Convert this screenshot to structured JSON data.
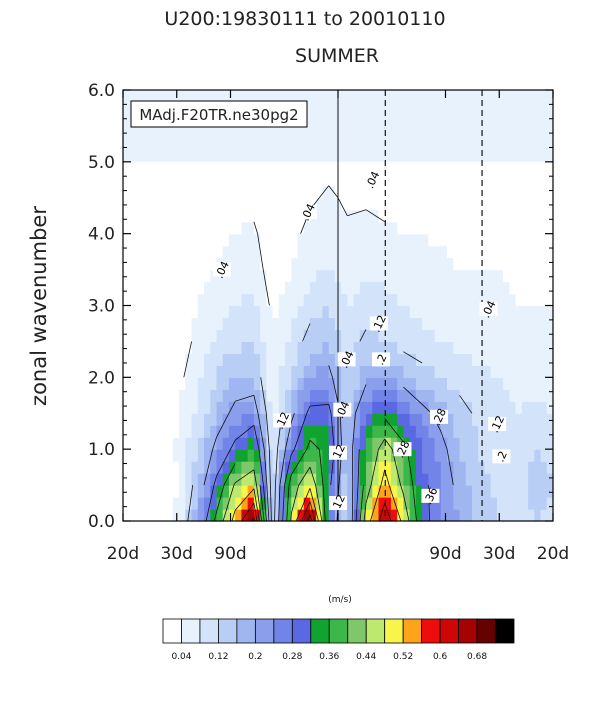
{
  "chart_data": {
    "type": "heatmap",
    "title": "U200:19830111 to 20010110",
    "subtitle": "SUMMER",
    "legend_box": "MAdj.F20TR.ne30pg2",
    "ylabel": "zonal wavenumber",
    "ylim": [
      0,
      6
    ],
    "y_ticks": [
      "0.0",
      "1.0",
      "2.0",
      "3.0",
      "4.0",
      "5.0",
      "6.0"
    ],
    "x_ticks": [
      "20d",
      "30d",
      "90d",
      "",
      "90d",
      "30d",
      "20d"
    ],
    "colorbar_title": "(m/s)",
    "colorbar_labels": [
      "0.04",
      "0.12",
      "0.2",
      "0.28",
      "0.36",
      "0.44",
      "0.52",
      "0.6",
      "0.68"
    ],
    "colorbar_colors": [
      "#ffffff",
      "#e8f2fd",
      "#d3e4fa",
      "#b9cef5",
      "#a0b6f0",
      "#8a9eec",
      "#7284e8",
      "#5a69e2",
      "#10a330",
      "#3cb84a",
      "#7ec86a",
      "#bdea6e",
      "#f8f54a",
      "#ffa21c",
      "#ee0d0d",
      "#cf0606",
      "#a50303",
      "#660101",
      "#000000"
    ],
    "x_norm": [
      0,
      0.125,
      0.25,
      0.5,
      0.75,
      0.875,
      1
    ],
    "y": [
      0,
      0.5,
      1.0,
      1.5,
      2.0,
      2.5,
      3.0,
      3.5,
      4.0,
      4.5,
      5.0
    ],
    "values": [
      [
        0.0,
        0.0,
        0.02,
        0.05,
        0.2,
        0.38,
        0.55,
        0.7,
        0.08,
        0.45,
        0.72,
        0.28,
        0.1,
        0.48,
        0.65,
        0.5,
        0.3,
        0.25,
        0.2,
        0.15,
        0.12,
        0.1,
        0.12,
        0.11
      ],
      [
        0.0,
        0.0,
        0.01,
        0.04,
        0.15,
        0.3,
        0.45,
        0.5,
        0.07,
        0.4,
        0.5,
        0.3,
        0.12,
        0.4,
        0.55,
        0.42,
        0.3,
        0.24,
        0.18,
        0.14,
        0.11,
        0.1,
        0.13,
        0.12
      ],
      [
        0.0,
        0.0,
        0.01,
        0.05,
        0.12,
        0.22,
        0.3,
        0.36,
        0.07,
        0.26,
        0.38,
        0.34,
        0.14,
        0.36,
        0.48,
        0.38,
        0.28,
        0.22,
        0.16,
        0.12,
        0.1,
        0.09,
        0.12,
        0.11
      ],
      [
        0.0,
        0.0,
        0.01,
        0.04,
        0.09,
        0.16,
        0.22,
        0.24,
        0.06,
        0.18,
        0.3,
        0.3,
        0.14,
        0.28,
        0.34,
        0.28,
        0.22,
        0.18,
        0.14,
        0.11,
        0.09,
        0.08,
        0.09,
        0.08
      ],
      [
        0.0,
        0.0,
        0.01,
        0.03,
        0.07,
        0.12,
        0.16,
        0.16,
        0.05,
        0.12,
        0.2,
        0.22,
        0.12,
        0.18,
        0.2,
        0.17,
        0.14,
        0.12,
        0.1,
        0.09,
        0.08,
        0.07,
        0.06,
        0.06
      ],
      [
        0.0,
        0.0,
        0.01,
        0.02,
        0.05,
        0.09,
        0.11,
        0.12,
        0.04,
        0.09,
        0.14,
        0.16,
        0.1,
        0.13,
        0.12,
        0.1,
        0.09,
        0.08,
        0.07,
        0.06,
        0.06,
        0.05,
        0.05,
        0.05
      ],
      [
        0.0,
        0.0,
        0.01,
        0.02,
        0.04,
        0.06,
        0.08,
        0.09,
        0.03,
        0.06,
        0.1,
        0.12,
        0.08,
        0.1,
        0.09,
        0.08,
        0.07,
        0.06,
        0.06,
        0.05,
        0.05,
        0.04,
        0.04,
        0.04
      ],
      [
        0.0,
        0.0,
        0.0,
        0.01,
        0.03,
        0.04,
        0.06,
        0.06,
        0.02,
        0.04,
        0.07,
        0.08,
        0.06,
        0.07,
        0.07,
        0.06,
        0.05,
        0.05,
        0.04,
        0.04,
        0.04,
        0.03,
        0.03,
        0.03
      ],
      [
        0.0,
        0.0,
        0.0,
        0.01,
        0.02,
        0.03,
        0.04,
        0.045,
        0.02,
        0.03,
        0.05,
        0.06,
        0.045,
        0.05,
        0.045,
        0.04,
        0.04,
        0.035,
        0.03,
        0.03,
        0.03,
        0.02,
        0.02,
        0.02
      ],
      [
        0.0,
        0.0,
        0.0,
        0.01,
        0.01,
        0.02,
        0.03,
        0.03,
        0.01,
        0.02,
        0.035,
        0.045,
        0.035,
        0.035,
        0.03,
        0.03,
        0.025,
        0.025,
        0.02,
        0.02,
        0.02,
        0.015,
        0.015,
        0.015
      ],
      [
        0.0,
        0.0,
        0.0,
        0.0,
        0.01,
        0.01,
        0.02,
        0.02,
        0.01,
        0.01,
        0.02,
        0.03,
        0.02,
        0.02,
        0.02,
        0.02,
        0.015,
        0.015,
        0.01,
        0.01,
        0.01,
        0.01,
        0.01,
        0.01
      ]
    ],
    "contour_labels": [
      {
        "text": ".04",
        "x": 0.23,
        "y": 3.5
      },
      {
        "text": ".04",
        "x": 0.43,
        "y": 4.3
      },
      {
        "text": ".04",
        "x": 0.58,
        "y": 4.75
      },
      {
        "text": ".04",
        "x": 0.85,
        "y": 2.95
      },
      {
        "text": ".04",
        "x": 0.52,
        "y": 2.25
      },
      {
        "text": ".04",
        "x": 0.51,
        "y": 1.55
      },
      {
        "text": ".12",
        "x": 0.37,
        "y": 1.4
      },
      {
        "text": ".12",
        "x": 0.5,
        "y": 0.95
      },
      {
        "text": ".12",
        "x": 0.5,
        "y": 0.25
      },
      {
        "text": ".12",
        "x": 0.595,
        "y": 2.75
      },
      {
        "text": ".2",
        "x": 0.6,
        "y": 2.25
      },
      {
        "text": ".28",
        "x": 0.65,
        "y": 1.0
      },
      {
        "text": ".28",
        "x": 0.735,
        "y": 1.45
      },
      {
        "text": ".36",
        "x": 0.715,
        "y": 0.35
      },
      {
        "text": ".12",
        "x": 0.87,
        "y": 1.35
      },
      {
        "text": ".2",
        "x": 0.88,
        "y": 0.9
      }
    ]
  }
}
